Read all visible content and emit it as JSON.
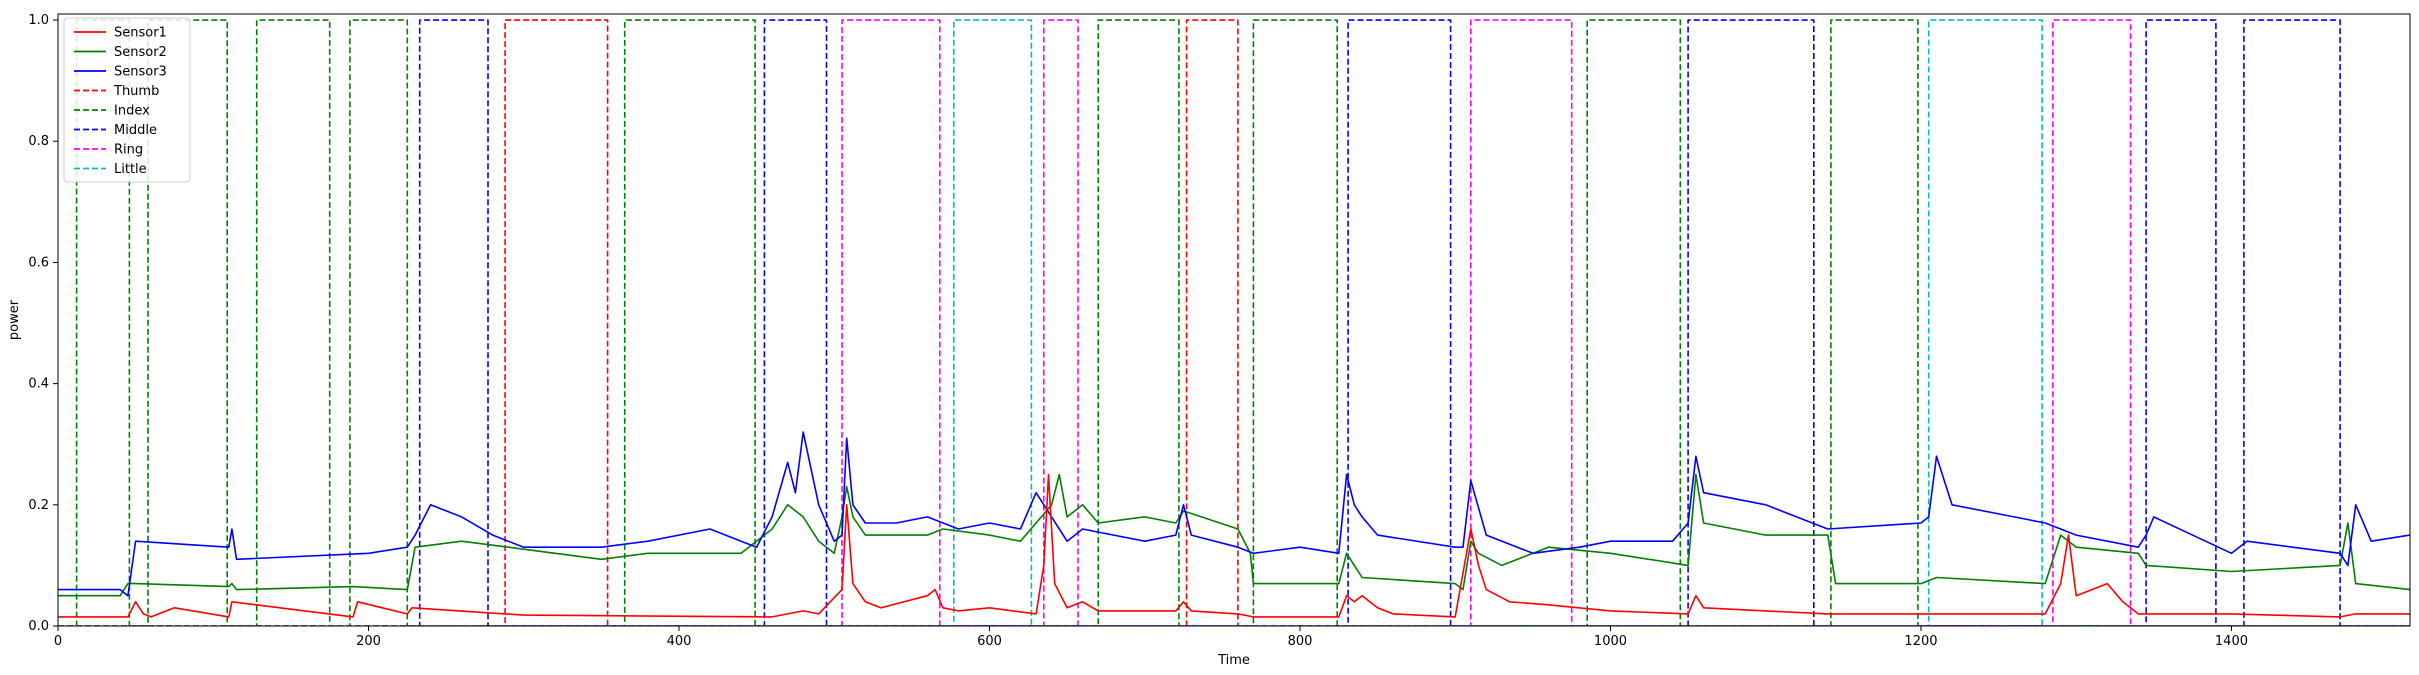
{
  "chart_data": {
    "type": "line",
    "title": "",
    "xlabel": "Time",
    "ylabel": "power",
    "xlim": [
      0,
      1515
    ],
    "ylim": [
      0,
      1.01
    ],
    "xticks": [
      0,
      200,
      400,
      600,
      800,
      1000,
      1200,
      1400
    ],
    "yticks": [
      0.0,
      0.2,
      0.4,
      0.6,
      0.8,
      1.0
    ],
    "xtick_labels": [
      "0",
      "200",
      "400",
      "600",
      "800",
      "1000",
      "1200",
      "1400"
    ],
    "ytick_labels": [
      "0.0",
      "0.2",
      "0.4",
      "0.6",
      "0.8",
      "1.0"
    ],
    "grid": false,
    "legend_position": "top-left",
    "legend": [
      "Sensor1",
      "Sensor2",
      "Sensor3",
      "Thumb",
      "Index",
      "Middle",
      "Ring",
      "Little"
    ],
    "series": [
      {
        "name": "Sensor1",
        "color": "#ff0000",
        "style": "solid",
        "x": [
          0,
          45,
          50,
          55,
          60,
          75,
          110,
          112,
          190,
          193,
          225,
          228,
          300,
          460,
          470,
          480,
          490,
          505,
          508,
          512,
          520,
          530,
          560,
          565,
          570,
          580,
          600,
          630,
          635,
          638,
          642,
          650,
          660,
          670,
          720,
          725,
          730,
          760,
          770,
          800,
          825,
          830,
          835,
          840,
          850,
          860,
          900,
          910,
          915,
          920,
          935,
          960,
          1000,
          1050,
          1055,
          1060,
          1100,
          1140,
          1200,
          1240,
          1280,
          1290,
          1295,
          1300,
          1320,
          1330,
          1340,
          1400,
          1470,
          1480,
          1515
        ],
        "y": [
          0.015,
          0.015,
          0.04,
          0.02,
          0.015,
          0.03,
          0.015,
          0.04,
          0.015,
          0.04,
          0.02,
          0.03,
          0.018,
          0.015,
          0.02,
          0.025,
          0.02,
          0.06,
          0.2,
          0.07,
          0.04,
          0.03,
          0.05,
          0.06,
          0.03,
          0.025,
          0.03,
          0.02,
          0.1,
          0.25,
          0.07,
          0.03,
          0.04,
          0.025,
          0.025,
          0.04,
          0.025,
          0.02,
          0.015,
          0.015,
          0.015,
          0.05,
          0.04,
          0.05,
          0.03,
          0.02,
          0.015,
          0.16,
          0.1,
          0.06,
          0.04,
          0.035,
          0.025,
          0.02,
          0.05,
          0.03,
          0.025,
          0.02,
          0.02,
          0.02,
          0.02,
          0.07,
          0.15,
          0.05,
          0.07,
          0.04,
          0.02,
          0.02,
          0.015,
          0.02,
          0.02
        ]
      },
      {
        "name": "Sensor2",
        "color": "#008000",
        "style": "solid",
        "x": [
          0,
          40,
          45,
          50,
          110,
          112,
          115,
          190,
          225,
          230,
          260,
          290,
          350,
          380,
          440,
          460,
          470,
          480,
          490,
          500,
          505,
          508,
          512,
          520,
          560,
          570,
          600,
          620,
          630,
          640,
          645,
          650,
          660,
          670,
          700,
          720,
          725,
          760,
          768,
          770,
          800,
          825,
          830,
          835,
          840,
          900,
          905,
          910,
          915,
          930,
          960,
          1000,
          1050,
          1055,
          1060,
          1100,
          1140,
          1145,
          1200,
          1210,
          1280,
          1290,
          1300,
          1340,
          1345,
          1400,
          1470,
          1475,
          1480,
          1515
        ],
        "y": [
          0.05,
          0.05,
          0.07,
          0.07,
          0.065,
          0.07,
          0.06,
          0.065,
          0.06,
          0.13,
          0.14,
          0.13,
          0.11,
          0.12,
          0.12,
          0.16,
          0.2,
          0.18,
          0.14,
          0.12,
          0.18,
          0.23,
          0.18,
          0.15,
          0.15,
          0.16,
          0.15,
          0.14,
          0.17,
          0.2,
          0.25,
          0.18,
          0.2,
          0.17,
          0.18,
          0.17,
          0.19,
          0.16,
          0.12,
          0.07,
          0.07,
          0.07,
          0.12,
          0.1,
          0.08,
          0.07,
          0.06,
          0.14,
          0.12,
          0.1,
          0.13,
          0.12,
          0.1,
          0.25,
          0.17,
          0.15,
          0.15,
          0.07,
          0.07,
          0.08,
          0.07,
          0.15,
          0.13,
          0.12,
          0.1,
          0.09,
          0.1,
          0.17,
          0.07,
          0.06
        ]
      },
      {
        "name": "Sensor3",
        "color": "#0000ff",
        "style": "solid",
        "x": [
          0,
          40,
          45,
          50,
          110,
          112,
          115,
          200,
          225,
          230,
          240,
          260,
          280,
          300,
          350,
          380,
          420,
          440,
          450,
          460,
          470,
          475,
          480,
          490,
          500,
          505,
          508,
          512,
          520,
          540,
          560,
          580,
          600,
          620,
          630,
          640,
          650,
          660,
          700,
          720,
          725,
          730,
          760,
          770,
          800,
          825,
          830,
          835,
          840,
          850,
          900,
          905,
          910,
          920,
          950,
          980,
          1000,
          1040,
          1050,
          1055,
          1060,
          1100,
          1130,
          1140,
          1200,
          1205,
          1210,
          1220,
          1260,
          1280,
          1290,
          1300,
          1340,
          1345,
          1350,
          1400,
          1410,
          1470,
          1475,
          1480,
          1490,
          1515
        ],
        "y": [
          0.06,
          0.06,
          0.05,
          0.14,
          0.13,
          0.16,
          0.11,
          0.12,
          0.13,
          0.15,
          0.2,
          0.18,
          0.15,
          0.13,
          0.13,
          0.14,
          0.16,
          0.14,
          0.13,
          0.18,
          0.27,
          0.22,
          0.32,
          0.2,
          0.14,
          0.15,
          0.31,
          0.2,
          0.17,
          0.17,
          0.18,
          0.16,
          0.17,
          0.16,
          0.22,
          0.18,
          0.14,
          0.16,
          0.14,
          0.15,
          0.2,
          0.15,
          0.13,
          0.12,
          0.13,
          0.12,
          0.25,
          0.2,
          0.18,
          0.15,
          0.13,
          0.13,
          0.24,
          0.15,
          0.12,
          0.13,
          0.14,
          0.14,
          0.17,
          0.28,
          0.22,
          0.2,
          0.17,
          0.16,
          0.17,
          0.18,
          0.28,
          0.2,
          0.18,
          0.17,
          0.16,
          0.15,
          0.13,
          0.15,
          0.18,
          0.12,
          0.14,
          0.12,
          0.1,
          0.2,
          0.14,
          0.15
        ]
      },
      {
        "name": "Thumb",
        "color": "#ff0000",
        "style": "dashed",
        "x": [
          0,
          288,
          288,
          354,
          354,
          727,
          727,
          760,
          760,
          1515
        ],
        "y": [
          0,
          0,
          1,
          1,
          0,
          0,
          1,
          1,
          0,
          0
        ]
      },
      {
        "name": "Index",
        "color": "#008000",
        "style": "dashed",
        "x": [
          0,
          12,
          12,
          46,
          46,
          58,
          58,
          109,
          109,
          128,
          128,
          175,
          175,
          188,
          188,
          225,
          225,
          365,
          365,
          449,
          449,
          670,
          670,
          722,
          722,
          770,
          770,
          824,
          824,
          985,
          985,
          1045,
          1045,
          1142,
          1142,
          1198,
          1198,
          1515
        ],
        "y": [
          0,
          0,
          1,
          1,
          0,
          0,
          1,
          1,
          0,
          0,
          1,
          1,
          0,
          0,
          1,
          1,
          0,
          0,
          1,
          1,
          0,
          0,
          1,
          1,
          0,
          0,
          1,
          1,
          0,
          0,
          1,
          1,
          0,
          0,
          1,
          1,
          0,
          0
        ]
      },
      {
        "name": "Middle",
        "color": "#0000ff",
        "style": "dashed",
        "x": [
          0,
          233,
          233,
          277,
          277,
          455,
          455,
          495,
          495,
          831,
          831,
          897,
          897,
          1050,
          1050,
          1131,
          1131,
          1345,
          1345,
          1390,
          1390,
          1408,
          1408,
          1470,
          1470,
          1515
        ],
        "y": [
          0,
          0,
          1,
          1,
          0,
          0,
          1,
          1,
          0,
          0,
          1,
          1,
          0,
          0,
          1,
          1,
          0,
          0,
          1,
          1,
          0,
          0,
          1,
          1,
          0,
          0
        ]
      },
      {
        "name": "Ring",
        "color": "#ff00ff",
        "style": "dashed",
        "x": [
          0,
          505,
          505,
          568,
          568,
          635,
          635,
          657,
          657,
          910,
          910,
          975,
          975,
          1285,
          1285,
          1335,
          1335,
          1515
        ],
        "y": [
          0,
          0,
          1,
          1,
          0,
          0,
          1,
          1,
          0,
          0,
          1,
          1,
          0,
          0,
          1,
          1,
          0,
          0
        ]
      },
      {
        "name": "Little",
        "color": "#00bfbf",
        "style": "dashed",
        "x": [
          0,
          577,
          577,
          627,
          627,
          1205,
          1205,
          1278,
          1278,
          1515
        ],
        "y": [
          0,
          0,
          1,
          1,
          0,
          0,
          1,
          1,
          0,
          0
        ]
      }
    ]
  }
}
